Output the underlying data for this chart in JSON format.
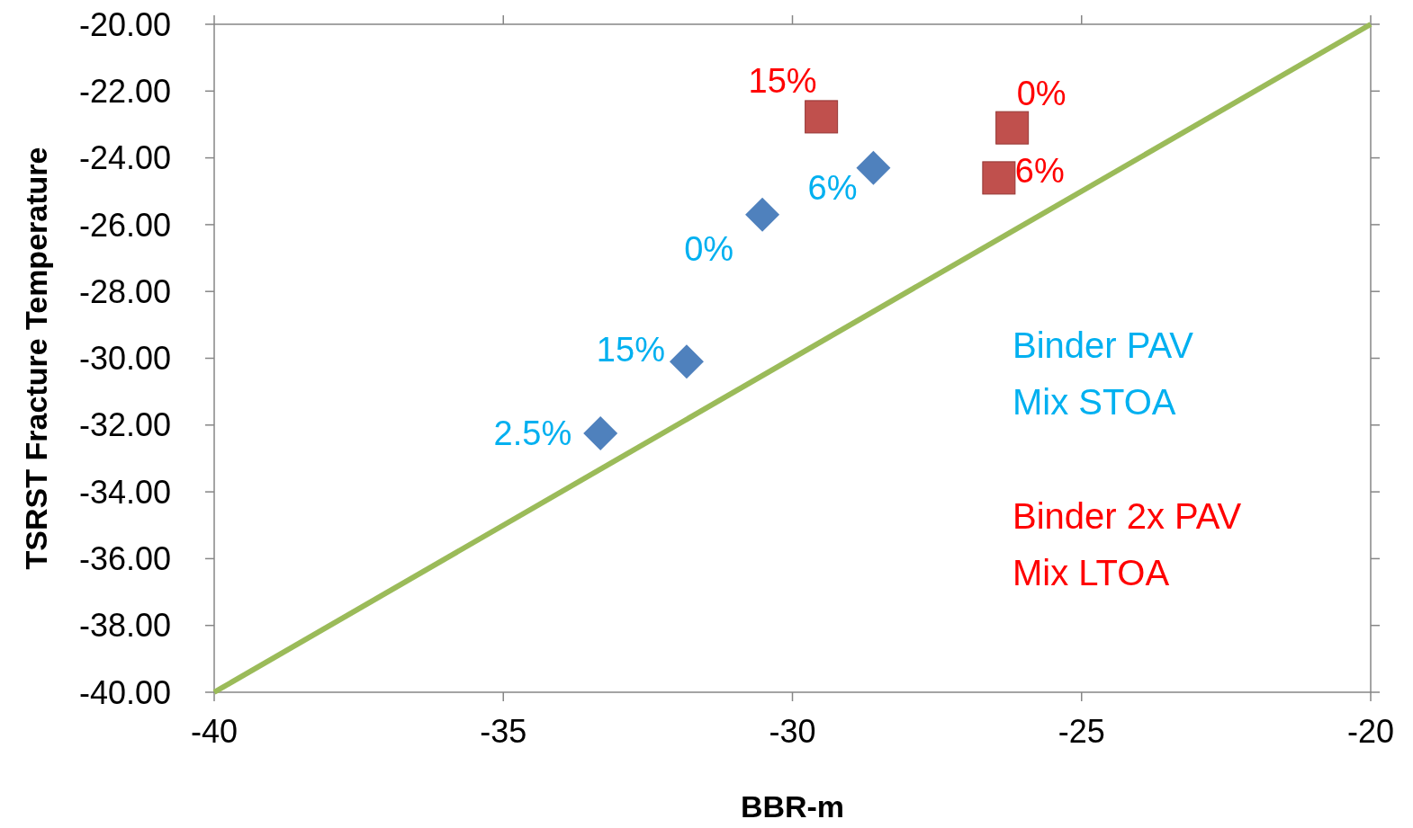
{
  "chart_data": {
    "type": "scatter",
    "xlabel": "BBR-m",
    "ylabel": "TSRST Fracture Temperature",
    "xlim": [
      -40,
      -20
    ],
    "xticks": [
      -40,
      -35,
      -30,
      -25,
      -20
    ],
    "ylim": [
      -40,
      -20
    ],
    "yticks": [
      {
        "value": -40,
        "label": "-40.00"
      },
      {
        "value": -38,
        "label": "-38.00"
      },
      {
        "value": -36,
        "label": "-36.00"
      },
      {
        "value": -34,
        "label": "-34.00"
      },
      {
        "value": -32,
        "label": "-32.00"
      },
      {
        "value": -30,
        "label": "-30.00"
      },
      {
        "value": -28,
        "label": "-28.00"
      },
      {
        "value": -26,
        "label": "-26.00"
      },
      {
        "value": -24,
        "label": "-24.00"
      },
      {
        "value": -22,
        "label": "-22.00"
      },
      {
        "value": -20,
        "label": "-20.00"
      }
    ],
    "grid": false,
    "legend": "right",
    "annotations": [
      {
        "text": "2.5%",
        "x": -33.32,
        "y": -32.25
      },
      {
        "text": "15%",
        "x": -31.83,
        "y": -30.1
      },
      {
        "text": "0%",
        "x": -30.52,
        "y": -25.7
      },
      {
        "text": "6%",
        "x": -28.6,
        "y": -24.3
      },
      {
        "text": "15%",
        "x": -29.5,
        "y": -22.77
      },
      {
        "text": "0%",
        "x": -26.2,
        "y": -23.1
      },
      {
        "text": "6%",
        "x": -26.43,
        "y": -24.6
      }
    ],
    "series": [
      {
        "name": "Binder PAV\nMix STOA",
        "color": "#4f81bd",
        "marker": "diamond",
        "x": [
          -33.32,
          -31.83,
          -30.52,
          -28.6
        ],
        "values": [
          -32.25,
          -30.1,
          -25.7,
          -24.3
        ]
      },
      {
        "name": "Binder 2x PAV\nMix LTOA",
        "color": "#c0504d",
        "marker": "square",
        "x": [
          -29.5,
          -26.2,
          -26.43
        ],
        "values": [
          -22.77,
          -23.1,
          -24.6
        ]
      },
      {
        "type": "line",
        "color": "#9bbb59",
        "marker": "none",
        "x": [
          -40,
          -20
        ],
        "values": [
          -40,
          -20
        ]
      }
    ]
  }
}
